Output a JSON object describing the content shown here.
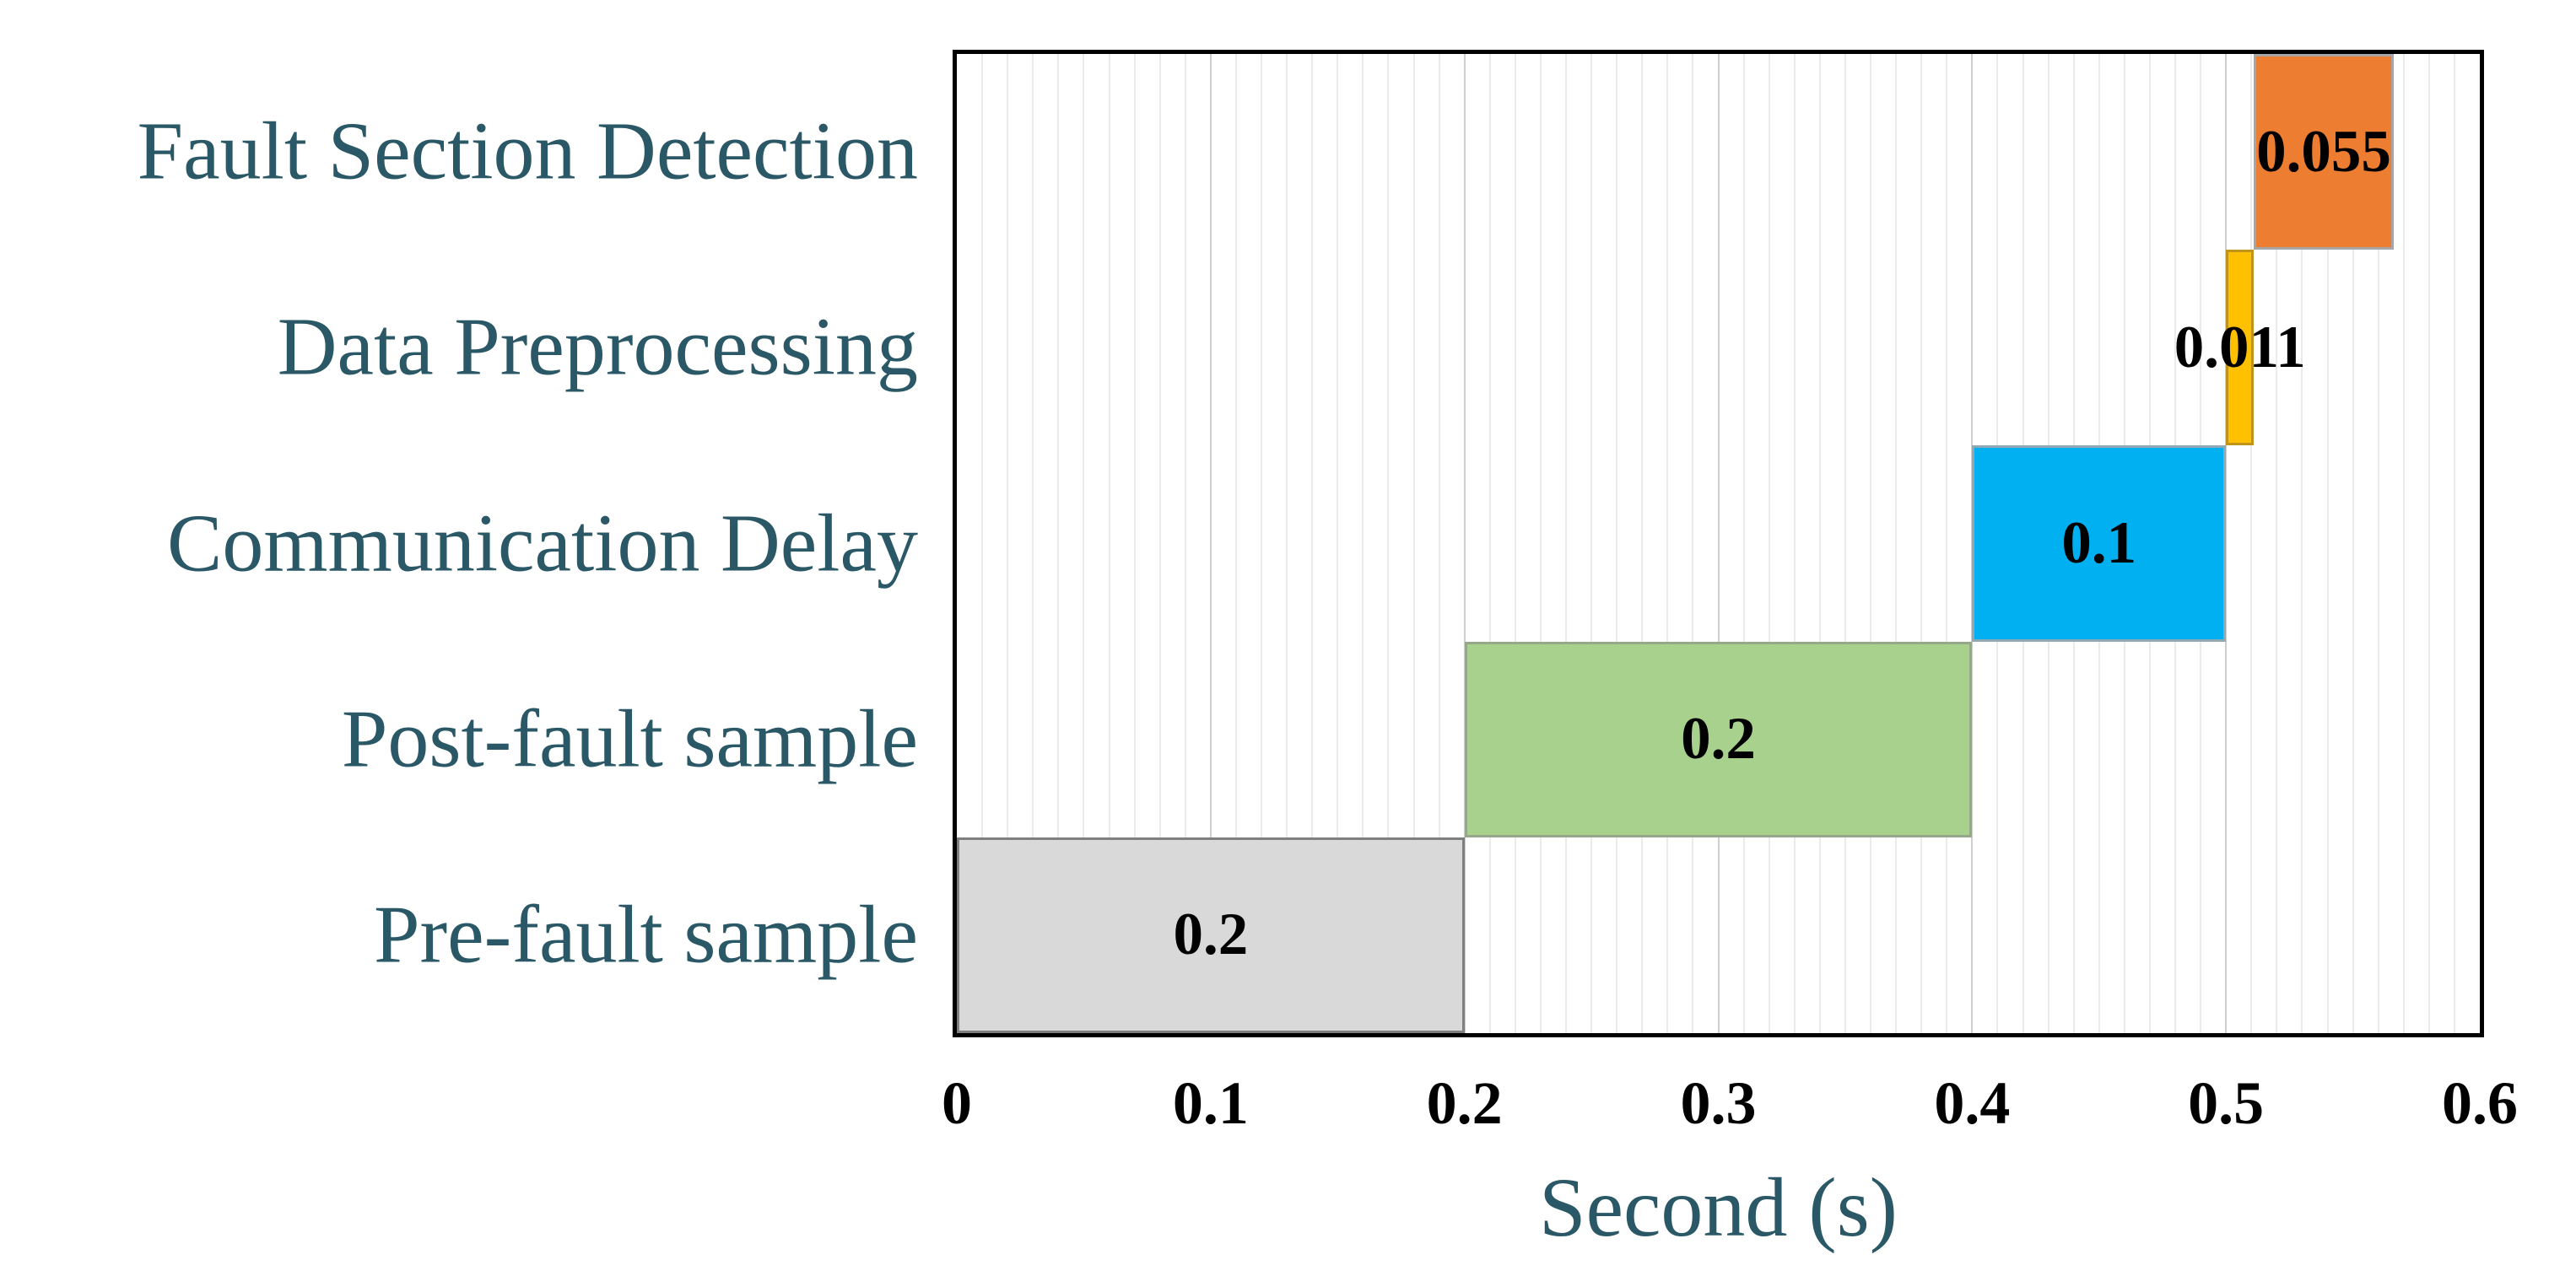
{
  "chart_data": {
    "type": "bar",
    "orientation": "horizontal",
    "title": "",
    "xlabel": "Second (s)",
    "ylabel": "",
    "xlim": [
      0,
      0.6
    ],
    "x_tick_values": [
      0,
      0.1,
      0.2,
      0.3,
      0.4,
      0.5,
      0.6
    ],
    "x_tick_labels": [
      "0",
      "0.1",
      "0.2",
      "0.3",
      "0.4",
      "0.5",
      "0.6"
    ],
    "grid": {
      "vertical_minor_step": 0.01,
      "vertical_major_step": 0.1,
      "horizontal": false
    },
    "legend": "none",
    "categories_top_to_bottom": [
      "Fault Section Detection",
      "Data Preprocessing",
      "Communication Delay",
      "Post-fault sample",
      "Pre-fault sample"
    ],
    "tasks": [
      {
        "label": "Fault Section Detection",
        "start": 0.511,
        "duration": 0.055,
        "value_label": "0.055",
        "color": "#ED7D31",
        "border_color": "#A6A6A6"
      },
      {
        "label": "Data Preprocessing",
        "start": 0.5,
        "duration": 0.011,
        "value_label": "0.011",
        "color": "#FFC000",
        "border_color": "#BE941B"
      },
      {
        "label": "Communication Delay",
        "start": 0.4,
        "duration": 0.1,
        "value_label": "0.1",
        "color": "#00B0F0",
        "border_color": "#8FA8B4"
      },
      {
        "label": "Post-fault sample",
        "start": 0.2,
        "duration": 0.2,
        "value_label": "0.2",
        "color": "#A9D18E",
        "border_color": "#95A98A"
      },
      {
        "label": "Pre-fault sample",
        "start": 0.0,
        "duration": 0.2,
        "value_label": "0.2",
        "color": "#D9D9D9",
        "border_color": "#7F7F7F"
      }
    ],
    "colors": {
      "category_text": "#2A5866",
      "axis_title_text": "#2A5866",
      "value_text": "#000000",
      "tick_text": "#000000",
      "plot_frame": "#000000",
      "minor_grid": "#EBEBEB",
      "major_grid": "#CFCFCF",
      "background": "#FFFFFF"
    }
  }
}
